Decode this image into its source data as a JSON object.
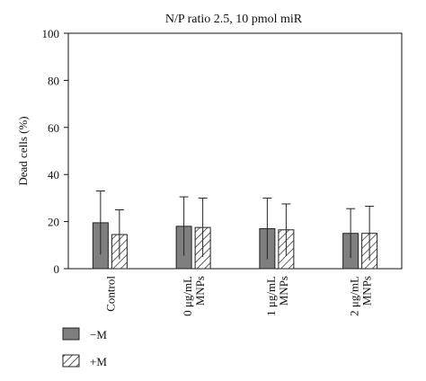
{
  "chart_data": {
    "type": "bar",
    "title": "N/P ratio 2.5, 10 pmol miR",
    "ylabel": "Dead cells (%)",
    "xlabel": "",
    "ylim": [
      0,
      100
    ],
    "yticks": [
      0,
      20,
      40,
      60,
      80,
      100
    ],
    "grid": false,
    "legend_position": "bottom-left",
    "categories": [
      [
        "Control"
      ],
      [
        "0 μg/mL",
        "MNPs"
      ],
      [
        "1 μg/mL",
        "MNPs"
      ],
      [
        "2 μg/mL",
        "MNPs"
      ]
    ],
    "series": [
      {
        "name": "−M",
        "fill": "solid",
        "color": "#7f7f7f",
        "values": [
          19.5,
          18,
          17,
          15
        ],
        "errors": [
          13.5,
          12.5,
          13,
          10.5
        ]
      },
      {
        "name": "+M",
        "fill": "hatched",
        "color": "#ffffff",
        "values": [
          14.5,
          17.5,
          16.5,
          15
        ],
        "errors": [
          10.5,
          12.5,
          11,
          11.5
        ]
      }
    ]
  }
}
